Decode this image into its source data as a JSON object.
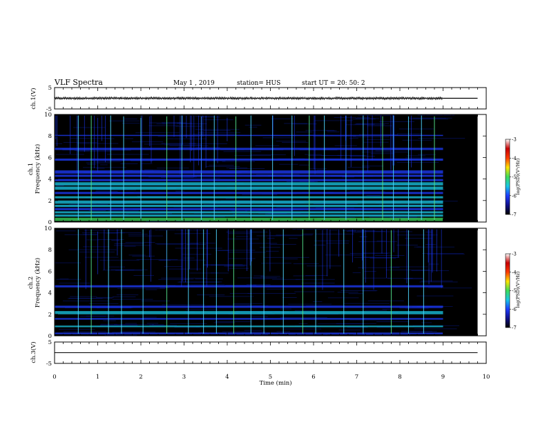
{
  "header": {
    "title": "VLF Spectra",
    "date": "May 1 , 2019",
    "station": "station= HUS",
    "start_ut": "start UT = 20: 50: 2"
  },
  "colors": {
    "background": "#000000",
    "noise": "#0a1e9a",
    "line_blue": "#1e3cff",
    "line_cyan": "#19c8e6",
    "line_green": "#3cdc5a",
    "spike_cyan": "#4fd7ff",
    "spike_green": "#55e38c",
    "colormap": [
      "#000000",
      "#10108c",
      "#1e3cff",
      "#19c8e6",
      "#3cdc5a",
      "#ffe600",
      "#ff3c00",
      "#c80000",
      "#ffffff"
    ]
  },
  "chart_data": [
    {
      "type": "line",
      "name": "ch1-waveform",
      "ylabel": "ch.1(V)",
      "ylim": [
        -5,
        5
      ],
      "yticks": [
        "5",
        "-5"
      ],
      "xlim": [
        0,
        10
      ],
      "data_end_min": 9.0,
      "flat_to_min": 9.8,
      "envelope_amplitude_V": 0.4
    },
    {
      "type": "heatmap",
      "name": "ch1-spectrogram",
      "ylabel": "Frequency (kHz)",
      "channel_label": "ch.1",
      "ylim": [
        0,
        10
      ],
      "yticks": [
        "0",
        "2",
        "4",
        "6",
        "8",
        "10"
      ],
      "xlim": [
        0,
        10
      ],
      "data_end_min": 9.0,
      "no_data_end_min": 9.8,
      "colorbar": {
        "label": "log(PSD)(V²/Hz)",
        "range": [
          -7,
          -3
        ],
        "ticks": [
          "-3",
          "-4",
          "-5",
          "-6",
          "-7"
        ]
      },
      "bands_khz": [
        [
          0.1,
          0.4,
          "green"
        ],
        [
          0.5,
          0.7,
          "cyan"
        ],
        [
          0.8,
          1.0,
          "cyan"
        ],
        [
          1.1,
          1.3,
          "blue"
        ],
        [
          1.4,
          1.6,
          "cyan"
        ],
        [
          1.7,
          2.0,
          "cyan"
        ],
        [
          2.2,
          2.4,
          "cyan"
        ],
        [
          2.6,
          2.8,
          "blue"
        ],
        [
          3.0,
          3.3,
          "cyan"
        ],
        [
          3.4,
          3.7,
          "cyan"
        ],
        [
          3.8,
          4.0,
          "blue"
        ],
        [
          4.2,
          4.4,
          "blue"
        ],
        [
          4.5,
          4.8,
          "blue"
        ],
        [
          5.7,
          5.9,
          "blue"
        ],
        [
          6.7,
          6.9,
          "blue"
        ],
        [
          8.0,
          8.1,
          "blue"
        ]
      ],
      "sferics_min": [
        0.55,
        0.85,
        1.3,
        1.6,
        2.0,
        2.6,
        2.95,
        3.4,
        3.7,
        4.2,
        4.55,
        5.05,
        5.5,
        5.9,
        6.25,
        6.75,
        7.15,
        7.6,
        7.85,
        8.2,
        8.5,
        8.8
      ]
    },
    {
      "type": "heatmap",
      "name": "ch2-spectrogram",
      "ylabel": "Frequency (kHz)",
      "channel_label": "ch.2",
      "ylim": [
        0,
        10
      ],
      "yticks": [
        "0",
        "2",
        "4",
        "6",
        "8",
        "10"
      ],
      "xlim": [
        0,
        10
      ],
      "data_end_min": 9.0,
      "no_data_end_min": 9.8,
      "colorbar": {
        "label": "log(PSD)(V²/Hz)",
        "range": [
          -7,
          -3
        ],
        "ticks": [
          "-3",
          "-4",
          "-5",
          "-6",
          "-7"
        ]
      },
      "bands_khz": [
        [
          0.15,
          0.3,
          "blue"
        ],
        [
          0.8,
          0.95,
          "cyan"
        ],
        [
          1.5,
          1.65,
          "blue"
        ],
        [
          2.0,
          2.3,
          "cyan"
        ],
        [
          2.6,
          2.8,
          "blue"
        ],
        [
          4.5,
          4.7,
          "blue"
        ]
      ],
      "sferics_min": [
        0.55,
        0.85,
        1.25,
        1.55,
        2.05,
        2.6,
        3.1,
        3.45,
        3.75,
        4.15,
        4.55,
        4.85,
        5.3,
        5.75,
        6.05,
        6.7,
        7.15,
        7.8,
        8.2,
        8.55
      ]
    },
    {
      "type": "line",
      "name": "ch3-waveform",
      "ylabel": "ch.3(V)",
      "ylim": [
        -5,
        5
      ],
      "yticks": [
        "5",
        "-5"
      ],
      "xlim": [
        0,
        10
      ],
      "flat_value_V": 0,
      "flat_to_min": 9.8
    }
  ],
  "xaxis": {
    "label": "Time (min)",
    "ticks": [
      "0",
      "1",
      "2",
      "3",
      "4",
      "5",
      "6",
      "7",
      "8",
      "9",
      "10"
    ]
  }
}
